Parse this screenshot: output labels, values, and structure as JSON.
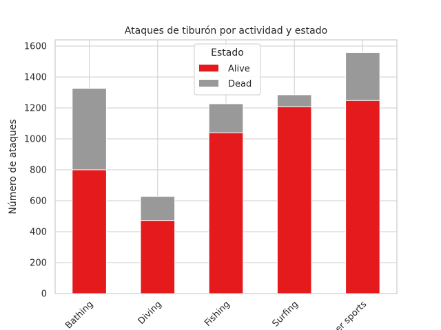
{
  "chart_data": {
    "type": "bar",
    "stacked": true,
    "title": "Ataques de tiburón por actividad y estado",
    "xlabel": "",
    "ylabel": "Número de ataques",
    "categories": [
      "Bathing",
      "Diving",
      "Fishing",
      "Surfing",
      "Other sports"
    ],
    "series": [
      {
        "name": "Alive",
        "values": [
          800,
          473,
          1040,
          1208,
          1248
        ],
        "color": "#e41a1c"
      },
      {
        "name": "Dead",
        "values": [
          527,
          155,
          187,
          77,
          310
        ],
        "color": "#999999"
      }
    ],
    "ylim": [
      0,
      1640
    ],
    "yticks": [
      0,
      200,
      400,
      600,
      800,
      1000,
      1200,
      1400,
      1600
    ],
    "grid": true,
    "legend": {
      "title": "Estado",
      "placement": "top-center"
    }
  }
}
